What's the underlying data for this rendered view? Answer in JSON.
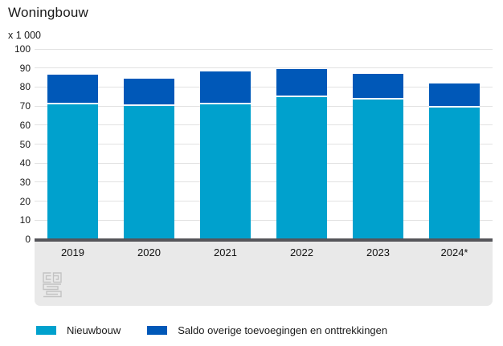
{
  "title": "Woningbouw",
  "unit_label": "x 1 000",
  "chart_data": {
    "type": "bar",
    "stacked": true,
    "title": "Woningbouw",
    "ylabel": "x 1 000",
    "categories": [
      "2019",
      "2020",
      "2021",
      "2022",
      "2023",
      "2024*"
    ],
    "series": [
      {
        "name": "Nieuwbouw",
        "color": "#00a1cd",
        "values": [
          71,
          70,
          71,
          74.5,
          73.5,
          69
        ]
      },
      {
        "name": "Saldo overige toevoegingen en onttrekkingen",
        "color": "#0058b8",
        "values": [
          15.5,
          14.5,
          17,
          15,
          13.5,
          13
        ]
      }
    ],
    "totals": [
      86.5,
      84.5,
      88,
      89.5,
      87,
      82
    ],
    "ylim": [
      0,
      100
    ],
    "ytick_step": 10,
    "yticks": [
      "0",
      "10",
      "20",
      "30",
      "40",
      "50",
      "60",
      "70",
      "80",
      "90",
      "100"
    ],
    "grid": true,
    "legend_position": "bottom"
  },
  "icons": {
    "logo": "cbs-logo"
  },
  "colors": {
    "nieuwbouw": "#00a1cd",
    "saldo": "#0058b8",
    "gridline": "#e2e2e2",
    "axis_line": "#55555a",
    "axis_band": "#e9e9e9",
    "logo_gray": "#c3c3c3",
    "text": "#1a1a1a"
  }
}
